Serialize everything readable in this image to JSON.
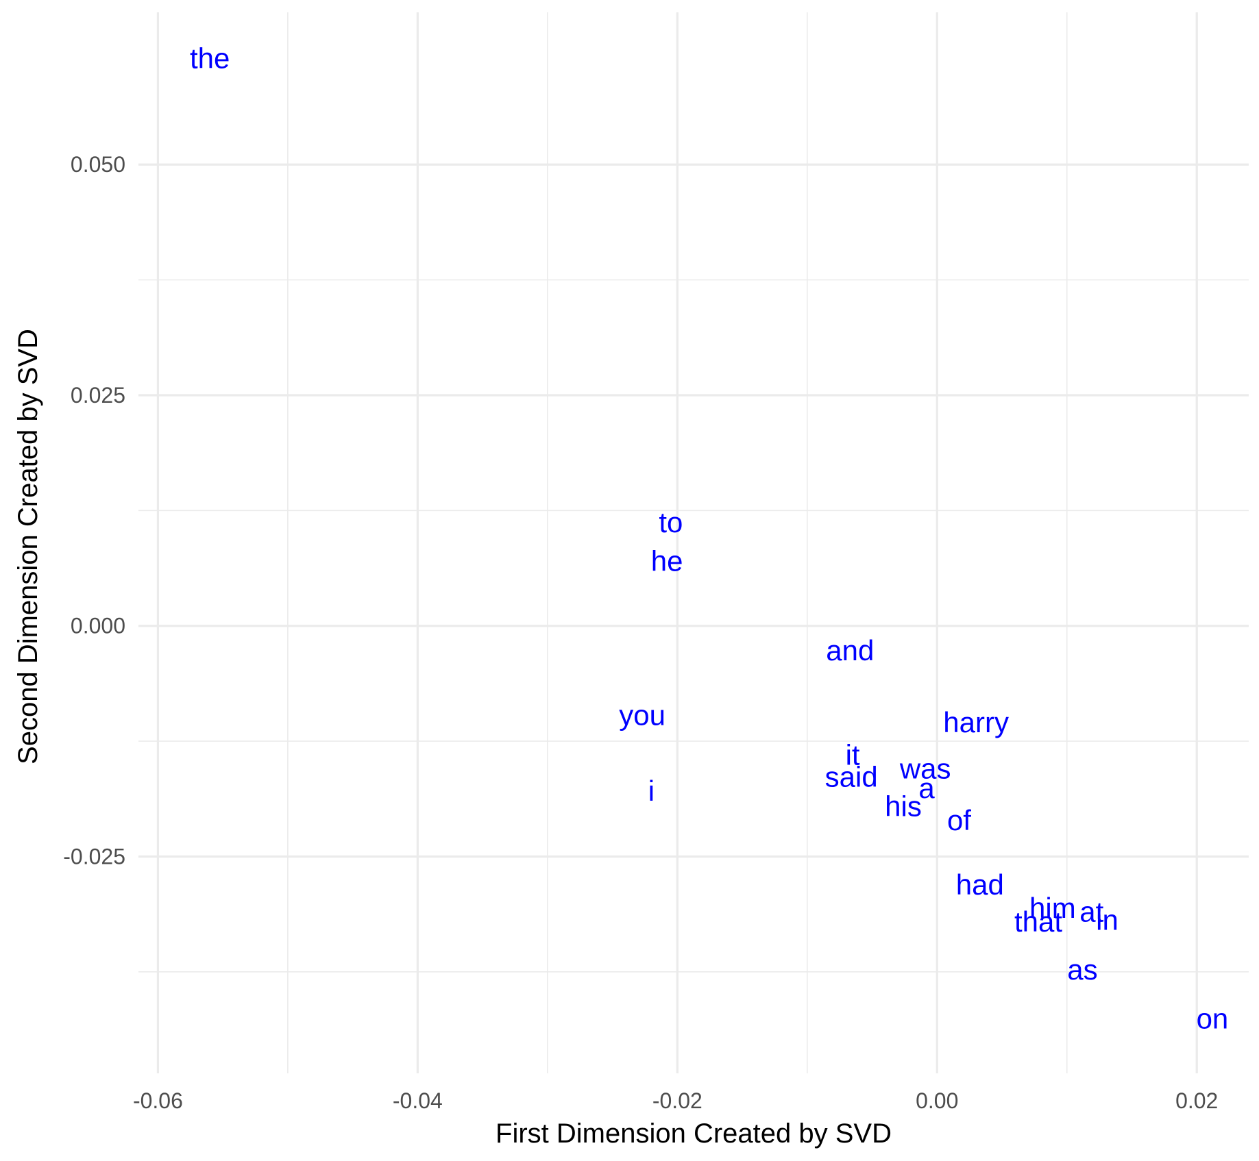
{
  "colors": {
    "label": "#0000ff",
    "grid": "#ebebeb",
    "tick_text": "#4d4d4d",
    "axis_title": "#000000",
    "background": "#ffffff"
  },
  "chart_data": {
    "type": "scatter",
    "title": "",
    "xlabel": "First Dimension Created by SVD",
    "ylabel": "Second Dimension Created by SVD",
    "xlim": [
      -0.0615,
      0.024
    ],
    "ylim": [
      -0.0485,
      0.0665
    ],
    "grid": true,
    "legend": "none",
    "x_ticks": [
      -0.06,
      -0.04,
      -0.02,
      0.0,
      0.02
    ],
    "x_tick_labels": [
      "-0.06",
      "-0.04",
      "-0.02",
      "0.00",
      "0.02"
    ],
    "y_ticks": [
      0.05,
      0.025,
      0.0,
      -0.025
    ],
    "y_tick_labels": [
      "0.050",
      "0.025",
      "0.000",
      "-0.025"
    ],
    "x_minor_ticks": [
      -0.05,
      -0.03,
      -0.01,
      0.01
    ],
    "y_minor_ticks": [
      0.0375,
      0.0125,
      -0.0125,
      -0.0375
    ],
    "points": [
      {
        "label": "the",
        "x": -0.056,
        "y": 0.0615
      },
      {
        "label": "to",
        "x": -0.0205,
        "y": 0.0112
      },
      {
        "label": "he",
        "x": -0.0208,
        "y": 0.007
      },
      {
        "label": "and",
        "x": -0.0067,
        "y": -0.0027
      },
      {
        "label": "you",
        "x": -0.0227,
        "y": -0.0097
      },
      {
        "label": "harry",
        "x": 0.003,
        "y": -0.0105
      },
      {
        "label": "it",
        "x": -0.0065,
        "y": -0.014
      },
      {
        "label": "said",
        "x": -0.0066,
        "y": -0.0164
      },
      {
        "label": "was",
        "x": -0.0009,
        "y": -0.0155
      },
      {
        "label": "a",
        "x": -0.0008,
        "y": -0.0176
      },
      {
        "label": "i",
        "x": -0.022,
        "y": -0.0179
      },
      {
        "label": "his",
        "x": -0.0026,
        "y": -0.0196
      },
      {
        "label": "of",
        "x": 0.0017,
        "y": -0.0211
      },
      {
        "label": "had",
        "x": 0.0033,
        "y": -0.0281
      },
      {
        "label": "him",
        "x": 0.0089,
        "y": -0.0306
      },
      {
        "label": "at",
        "x": 0.0119,
        "y": -0.031
      },
      {
        "label": "that",
        "x": 0.0078,
        "y": -0.0321
      },
      {
        "label": "in",
        "x": 0.0131,
        "y": -0.0319
      },
      {
        "label": "as",
        "x": 0.0112,
        "y": -0.0373
      },
      {
        "label": "on",
        "x": 0.0212,
        "y": -0.0426
      }
    ]
  }
}
